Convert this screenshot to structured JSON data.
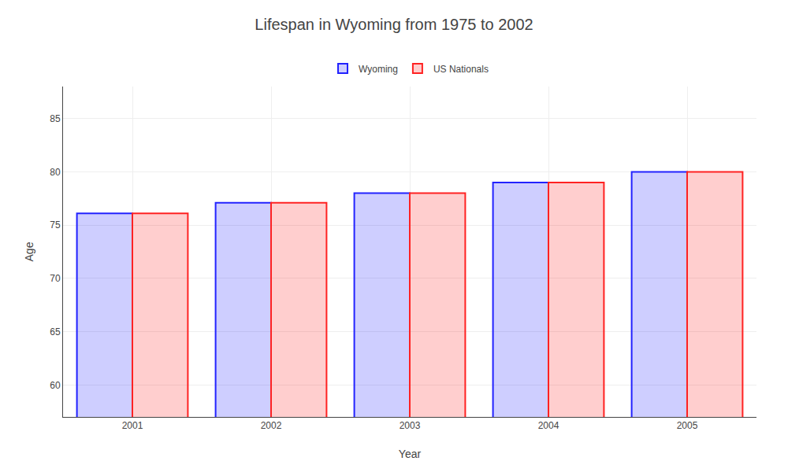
{
  "chart_data": {
    "type": "bar",
    "title": "Lifespan in Wyoming from 1975 to 2002",
    "xlabel": "Year",
    "ylabel": "Age",
    "categories": [
      "2001",
      "2002",
      "2003",
      "2004",
      "2005"
    ],
    "series": [
      {
        "name": "Wyoming",
        "color": "#2222ff",
        "values": [
          76.1,
          77.1,
          78.0,
          79.0,
          80.0
        ]
      },
      {
        "name": "US Nationals",
        "color": "#ff2222",
        "values": [
          76.1,
          77.1,
          78.0,
          79.0,
          80.0
        ]
      }
    ],
    "ylim": [
      57,
      88
    ],
    "yticks": [
      60,
      65,
      70,
      75,
      80,
      85
    ],
    "grid": true,
    "legend": "top"
  }
}
